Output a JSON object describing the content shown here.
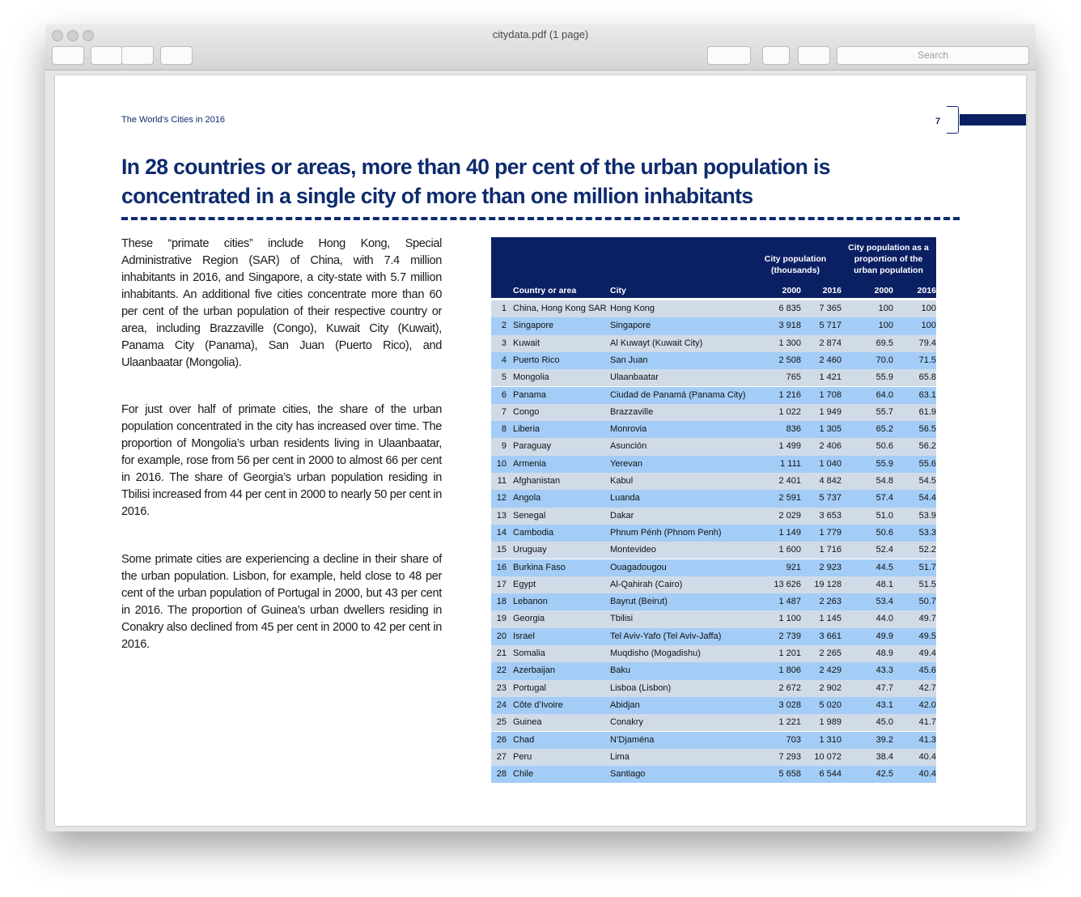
{
  "window": {
    "title": "citydata.pdf (1 page)",
    "search_placeholder": "Search"
  },
  "page": {
    "running_header": "The World’s Cities in 2016",
    "page_number": "7",
    "heading": {
      "lines": [
        "In 28 countries or areas, more than 40 per cent of the urban population is",
        "concentrated in a single city of more than one million inhabitants"
      ]
    },
    "paragraphs": [
      "These “primate cities” include Hong Kong, Special Administrative Region (SAR) of China, with 7.4 million inhabitants in 2016, and Singapore, a city-state with 5.7 million inhabitants.  An additional five cities concentrate more than 60 per cent of the urban population of their respective country or area, including Brazzaville (Congo), Kuwait City (Kuwait), Panama City (Panama), San Juan (Puerto Rico), and Ulaanbaatar (Mongolia).",
      "For just over half of primate cities, the share of the urban population concentrated in the city has increased over time.  The proportion of Mongolia’s urban residents living in Ulaanbaatar, for example, rose from 56 per cent in 2000 to almost 66 per cent in 2016. The share of Georgia’s urban population residing in Tbilisi increased from 44 per cent in 2000 to nearly 50 per cent in 2016.",
      "Some primate cities are experiencing a decline in their share of the urban population.  Lisbon, for example, held close to 48 per cent of the urban population of Portugal in 2000, but 43 per cent in 2016.  The proportion of Guinea’s urban dwellers residing in Conakry also declined from 45 per cent in 2000 to 42 per cent in 2016."
    ]
  },
  "table": {
    "group_headers": [
      "City population (thousands)",
      "City population as a proportion of the urban population"
    ],
    "columns": [
      "Country or area",
      "City",
      "2000",
      "2016",
      "2000",
      "2016"
    ],
    "rows": [
      [
        "1",
        "China, Hong Kong SAR",
        "Hong Kong",
        "6 835",
        "7 365",
        "100",
        "100"
      ],
      [
        "2",
        "Singapore",
        "Singapore",
        "3 918",
        "5 717",
        "100",
        "100"
      ],
      [
        "3",
        "Kuwait",
        "Al Kuwayt (Kuwait City)",
        "1 300",
        "2 874",
        "69.5",
        "79.4"
      ],
      [
        "4",
        "Puerto Rico",
        "San Juan",
        "2 508",
        "2 460",
        "70.0",
        "71.5"
      ],
      [
        "5",
        "Mongolia",
        "Ulaanbaatar",
        "765",
        "1 421",
        "55.9",
        "65.8"
      ],
      [
        "6",
        "Panama",
        "Ciudad de Panamá (Panama City)",
        "1 216",
        "1 708",
        "64.0",
        "63.1"
      ],
      [
        "7",
        "Congo",
        "Brazzaville",
        "1 022",
        "1 949",
        "55.7",
        "61.9"
      ],
      [
        "8",
        "Liberia",
        "Monrovia",
        "836",
        "1 305",
        "65.2",
        "56.5"
      ],
      [
        "9",
        "Paraguay",
        "Asunción",
        "1 499",
        "2 406",
        "50.6",
        "56.2"
      ],
      [
        "10",
        "Armenia",
        "Yerevan",
        "1 111",
        "1 040",
        "55.9",
        "55.6"
      ],
      [
        "11",
        "Afghanistan",
        "Kabul",
        "2 401",
        "4 842",
        "54.8",
        "54.5"
      ],
      [
        "12",
        "Angola",
        "Luanda",
        "2 591",
        "5 737",
        "57.4",
        "54.4"
      ],
      [
        "13",
        "Senegal",
        "Dakar",
        "2 029",
        "3 653",
        "51.0",
        "53.9"
      ],
      [
        "14",
        "Cambodia",
        "Phnum Pénh (Phnom Penh)",
        "1 149",
        "1 779",
        "50.6",
        "53.3"
      ],
      [
        "15",
        "Uruguay",
        "Montevideo",
        "1 600",
        "1 716",
        "52.4",
        "52.2"
      ],
      [
        "16",
        "Burkina Faso",
        "Ouagadougou",
        "921",
        "2 923",
        "44.5",
        "51.7"
      ],
      [
        "17",
        "Egypt",
        "Al-Qahirah (Cairo)",
        "13 626",
        "19 128",
        "48.1",
        "51.5"
      ],
      [
        "18",
        "Lebanon",
        "Bayrut (Beirut)",
        "1 487",
        "2 263",
        "53.4",
        "50.7"
      ],
      [
        "19",
        "Georgia",
        "Tbilisi",
        "1 100",
        "1 145",
        "44.0",
        "49.7"
      ],
      [
        "20",
        "Israel",
        "Tel Aviv-Yafo (Tel Aviv-Jaffa)",
        "2 739",
        "3 661",
        "49.9",
        "49.5"
      ],
      [
        "21",
        "Somalia",
        "Muqdisho (Mogadishu)",
        "1 201",
        "2 265",
        "48.9",
        "49.4"
      ],
      [
        "22",
        "Azerbaijan",
        "Baku",
        "1 806",
        "2 429",
        "43.3",
        "45.6"
      ],
      [
        "23",
        "Portugal",
        "Lisboa (Lisbon)",
        "2 672",
        "2 902",
        "47.7",
        "42.7"
      ],
      [
        "24",
        "Côte d’Ivoire",
        "Abidjan",
        "3 028",
        "5 020",
        "43.1",
        "42.0"
      ],
      [
        "25",
        "Guinea",
        "Conakry",
        "1 221",
        "1 989",
        "45.0",
        "41.7"
      ],
      [
        "26",
        "Chad",
        "N’Djaména",
        "703",
        "1 310",
        "39.2",
        "41.3"
      ],
      [
        "27",
        "Peru",
        "Lima",
        "7 293",
        "10 072",
        "38.4",
        "40.4"
      ],
      [
        "28",
        "Chile",
        "Santiago",
        "5 658",
        "6 544",
        "42.5",
        "40.4"
      ]
    ]
  }
}
